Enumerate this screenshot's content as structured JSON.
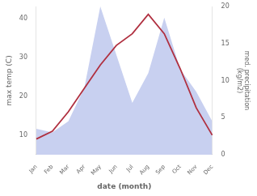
{
  "chart_data": {
    "type": "line",
    "xlabel": "date (month)",
    "ylabel": "max temp (C)",
    "y2label": "med. precipitation\n(kg/m2)",
    "categories": [
      "Jan",
      "Feb",
      "Mar",
      "Apr",
      "May",
      "Jun",
      "Jul",
      "Aug",
      "Sep",
      "Oct",
      "Nov",
      "Dec"
    ],
    "series": [
      {
        "type": "area",
        "axis": "y2",
        "color": "#c8d0f0",
        "values": [
          3.5,
          3.0,
          4.5,
          9.0,
          20.0,
          13.5,
          7.0,
          11.0,
          18.5,
          11.5,
          8.5,
          4.5
        ]
      },
      {
        "type": "line",
        "color": "#b03040",
        "values": [
          9,
          11,
          16,
          22,
          28,
          33,
          36,
          41,
          36,
          27,
          17,
          10
        ]
      }
    ],
    "ylim": [
      5,
      43
    ],
    "yticks": [
      10,
      20,
      30,
      40
    ],
    "y2lim": [
      0,
      20
    ],
    "y2ticks": [
      0,
      5,
      10,
      15,
      20
    ],
    "grid": false
  }
}
